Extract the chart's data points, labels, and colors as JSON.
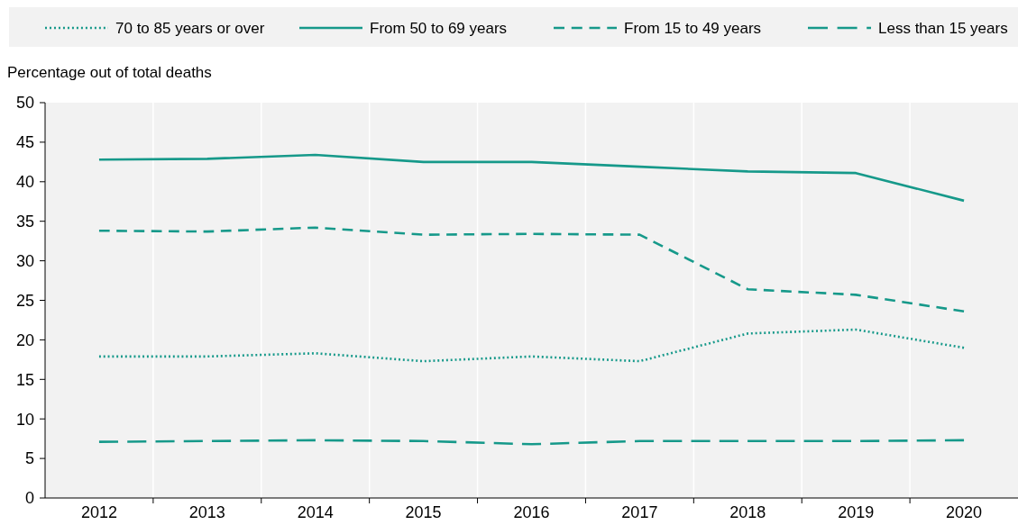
{
  "chart_data": {
    "type": "line",
    "ylabel": "Percentage out of total deaths",
    "categories": [
      "2012",
      "2013",
      "2014",
      "2015",
      "2016",
      "2017",
      "2018",
      "2019",
      "2020"
    ],
    "series": [
      {
        "name": "70 to 85 years or over",
        "color": "#16998a",
        "line_style": "dotted",
        "values": [
          17.9,
          17.9,
          18.3,
          17.3,
          17.9,
          17.3,
          20.8,
          21.3,
          19.0
        ]
      },
      {
        "name": "From 50 to 69 years",
        "color": "#16998a",
        "line_style": "solid",
        "values": [
          42.8,
          42.9,
          43.4,
          42.5,
          42.5,
          41.9,
          41.3,
          41.1,
          37.6
        ]
      },
      {
        "name": "From 15 to 49 years",
        "color": "#16998a",
        "line_style": "dashed",
        "values": [
          33.8,
          33.7,
          34.2,
          33.3,
          33.4,
          33.3,
          26.4,
          25.7,
          23.6
        ]
      },
      {
        "name": "Less than 15 years",
        "color": "#16998a",
        "line_style": "dashed",
        "values": [
          7.1,
          7.2,
          7.3,
          7.2,
          6.8,
          7.2,
          7.2,
          7.2,
          7.3
        ]
      }
    ],
    "ylim": [
      0,
      50
    ],
    "yticks": [
      0,
      5,
      10,
      15,
      20,
      25,
      30,
      35,
      40,
      45,
      50
    ],
    "grid": "x",
    "legend": "top",
    "marker": "none"
  }
}
